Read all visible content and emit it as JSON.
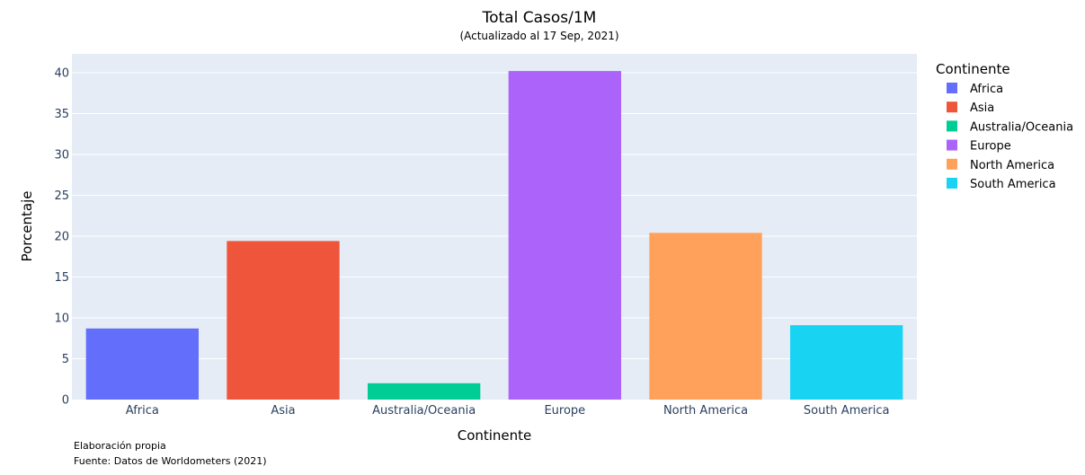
{
  "chart_data": {
    "type": "bar",
    "title": "Total Casos/1M",
    "subtitle": "(Actualizado al 17 Sep, 2021)",
    "xlabel": "Continente",
    "ylabel": "Porcentaje",
    "ylim": [
      0,
      42.3
    ],
    "yticks": [
      0,
      5,
      10,
      15,
      20,
      25,
      30,
      35,
      40
    ],
    "ytick_labels": [
      "0",
      "5",
      "10",
      "15",
      "20",
      "25",
      "30",
      "35",
      "40"
    ],
    "grid": true,
    "categories": [
      "Africa",
      "Asia",
      "Australia/Oceania",
      "Europe",
      "North America",
      "South America"
    ],
    "values": [
      8.7,
      19.4,
      2.0,
      40.2,
      20.4,
      9.1
    ],
    "colors": [
      "#636efa",
      "#ef553b",
      "#00cc96",
      "#ab63fa",
      "#ffa15a",
      "#19d3f3"
    ],
    "legend": {
      "title": "Continente",
      "position": "right",
      "items": [
        "Africa",
        "Asia",
        "Australia/Oceania",
        "Europe",
        "North America",
        "South America"
      ]
    },
    "annotations": [
      "Elaboración propia",
      "Fuente: Datos de Worldometers (2021)"
    ]
  },
  "style": {
    "plot_bg": "#e5ecf6",
    "grid_color": "#ffffff"
  }
}
